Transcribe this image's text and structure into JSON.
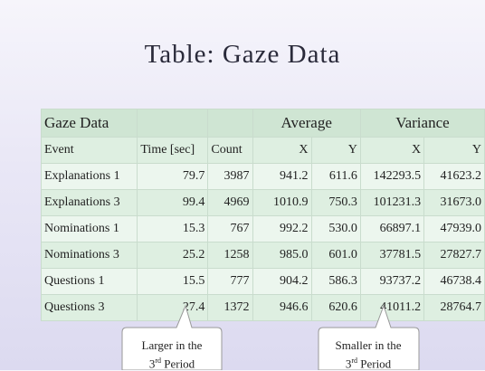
{
  "title": "Table: Gaze Data",
  "table": {
    "group_header": {
      "first": "Gaze Data",
      "average": "Average",
      "variance": "Variance"
    },
    "header": [
      "Event",
      "Time [sec]",
      "Count",
      "X",
      "Y",
      "X",
      "Y"
    ],
    "rows": [
      [
        "Explanations 1",
        "79.7",
        "3987",
        "941.2",
        "611.6",
        "142293.5",
        "41623.2"
      ],
      [
        "Explanations 3",
        "99.4",
        "4969",
        "1010.9",
        "750.3",
        "101231.3",
        "31673.0"
      ],
      [
        "Nominations 1",
        "15.3",
        "767",
        "992.2",
        "530.0",
        "66897.1",
        "47939.0"
      ],
      [
        "Nominations 3",
        "25.2",
        "1258",
        "985.0",
        "601.0",
        "37781.5",
        "27827.7"
      ],
      [
        "Questions 1",
        "15.5",
        "777",
        "904.2",
        "586.3",
        "93737.2",
        "46738.4"
      ],
      [
        "Questions 3",
        "27.4",
        "1372",
        "946.6",
        "620.6",
        "41011.2",
        "28764.7"
      ]
    ]
  },
  "callouts": [
    {
      "line1": "Larger in the",
      "num": "3",
      "sup": "rd",
      "rest": " Period"
    },
    {
      "line1": "Smaller in the",
      "num": "3",
      "sup": "rd",
      "rest": " Period"
    }
  ]
}
